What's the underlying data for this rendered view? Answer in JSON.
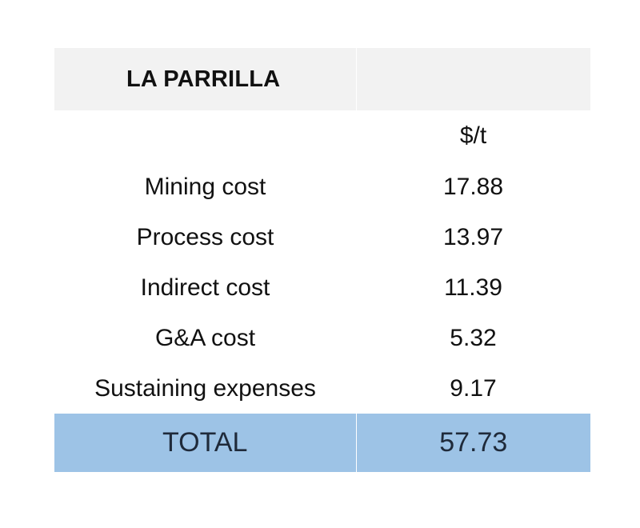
{
  "table": {
    "title": "LA PARRILLA",
    "unit": "$/t",
    "rows": [
      {
        "label": "Mining cost",
        "value": "17.88"
      },
      {
        "label": "Process cost",
        "value": "13.97"
      },
      {
        "label": "Indirect cost",
        "value": "11.39"
      },
      {
        "label": "G&A cost",
        "value": "5.32"
      },
      {
        "label": "Sustaining expenses",
        "value": "9.17"
      }
    ],
    "total": {
      "label": "TOTAL",
      "value": "57.73"
    }
  },
  "colors": {
    "header_bg": "#f2f2f2",
    "total_bg": "#9dc3e6"
  }
}
